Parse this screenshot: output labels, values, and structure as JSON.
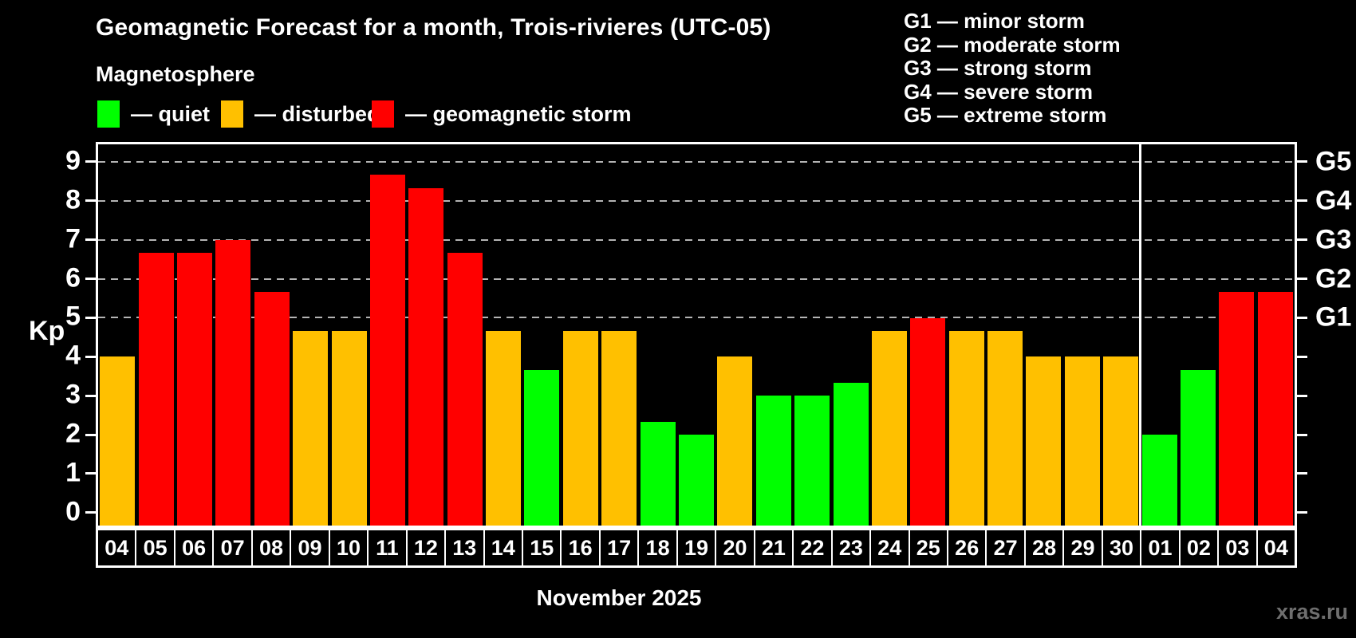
{
  "header": {
    "title": "Geomagnetic Forecast for a month, Trois-rivieres (UTC-05)",
    "subtitle": "Magnetosphere",
    "legend_items": [
      {
        "key": "quiet",
        "label": "— quiet"
      },
      {
        "key": "disturbed",
        "label": "— disturbed"
      },
      {
        "key": "storm",
        "label": "— geomagnetic storm"
      }
    ],
    "g_scale": [
      "G1 — minor storm",
      "G2 — moderate storm",
      "G3 — strong storm",
      "G4 — severe storm",
      "G5 — extreme storm"
    ]
  },
  "colors": {
    "quiet": "#00ff00",
    "disturbed": "#ffc000",
    "storm": "#ff0000",
    "grid": "#b4b4b4",
    "axis": "#ffffff",
    "watermark": "#6e6e6e"
  },
  "chart_data": {
    "type": "bar",
    "title": "Geomagnetic Forecast for a month, Trois-rivieres (UTC-05)",
    "ylabel": "Kp",
    "xlabel": "November 2025",
    "ylim": [
      -0.33,
      9.45
    ],
    "yticks": [
      0,
      1,
      2,
      3,
      4,
      5,
      6,
      7,
      8,
      9
    ],
    "gridline_levels": [
      5,
      6,
      7,
      8,
      9
    ],
    "grid": "dashed horizontal at Kp 5-9 only",
    "legend_position": "top",
    "right_axis": [
      {
        "level": 5,
        "label": "G1"
      },
      {
        "level": 6,
        "label": "G2"
      },
      {
        "level": 7,
        "label": "G3"
      },
      {
        "level": 8,
        "label": "G4"
      },
      {
        "level": 9,
        "label": "G5"
      }
    ],
    "categories": [
      "04",
      "05",
      "06",
      "07",
      "08",
      "09",
      "10",
      "11",
      "12",
      "13",
      "14",
      "15",
      "16",
      "17",
      "18",
      "19",
      "20",
      "21",
      "22",
      "23",
      "24",
      "25",
      "26",
      "27",
      "28",
      "29",
      "30",
      "01",
      "02",
      "03",
      "04"
    ],
    "values": [
      4,
      6.67,
      6.67,
      7,
      5.67,
      4.67,
      4.67,
      8.67,
      8.33,
      6.67,
      4.67,
      3.67,
      4.67,
      4.67,
      2.33,
      2,
      4,
      3,
      3,
      3.33,
      4.67,
      5,
      4.67,
      4.67,
      4,
      4,
      4,
      2,
      3.67,
      5.67,
      5.67
    ],
    "states": [
      "disturbed",
      "storm",
      "storm",
      "storm",
      "storm",
      "disturbed",
      "disturbed",
      "storm",
      "storm",
      "storm",
      "disturbed",
      "quiet",
      "disturbed",
      "disturbed",
      "quiet",
      "quiet",
      "disturbed",
      "quiet",
      "quiet",
      "quiet",
      "disturbed",
      "storm",
      "disturbed",
      "disturbed",
      "disturbed",
      "disturbed",
      "disturbed",
      "quiet",
      "quiet",
      "storm",
      "storm"
    ],
    "month_separator_index": 27,
    "month_label": "November 2025"
  },
  "watermark": "xras.ru"
}
